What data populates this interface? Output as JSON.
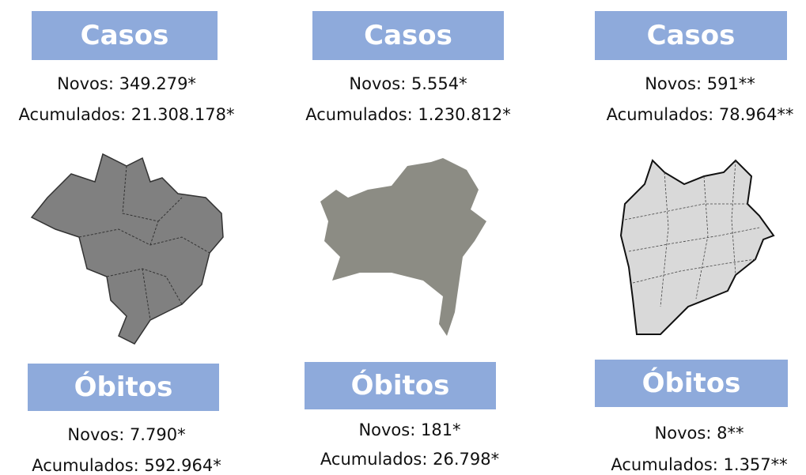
{
  "columns": [
    {
      "cases": {
        "title": "Casos",
        "new": "Novos: 349.279*",
        "total": "Acumulados: 21.308.178*"
      },
      "deaths": {
        "title": "Óbitos",
        "new": "Novos: 7.790*",
        "total": "Acumulados: 592.964*"
      }
    },
    {
      "cases": {
        "title": "Casos",
        "new": "Novos: 5.554*",
        "total": "Acumulados: 1.230.812*"
      },
      "deaths": {
        "title": "Óbitos",
        "new": "Novos: 181*",
        "total": "Acumulados: 26.798*"
      }
    },
    {
      "cases": {
        "title": "Casos",
        "new": "Novos: 591**",
        "total": "Acumulados: 78.964**"
      },
      "deaths": {
        "title": "Óbitos",
        "new": "Novos: 8**",
        "total": "Acumulados: 1.357**"
      }
    }
  ]
}
